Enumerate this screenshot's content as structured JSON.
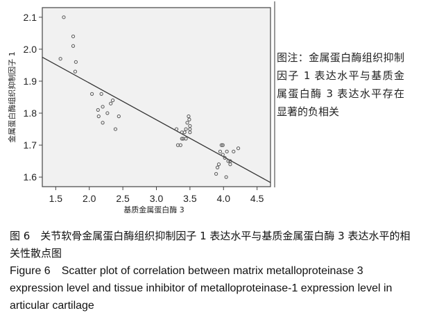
{
  "chart_data": {
    "type": "scatter",
    "title": "",
    "xlabel": "基质金属蛋白酶 3",
    "ylabel": "金属蛋白酶组织抑制因子 1",
    "xlim": [
      1.3,
      4.7
    ],
    "ylim": [
      1.57,
      2.13
    ],
    "x_ticks": [
      "1.5",
      "2.0",
      "2.5",
      "3.0",
      "3.5",
      "4.0",
      "4.5"
    ],
    "y_ticks": [
      "1.6",
      "1.7",
      "1.8",
      "1.9",
      "2.0",
      "2.1"
    ],
    "grid": false,
    "legend": "none",
    "points": [
      {
        "x": 1.62,
        "y": 2.1
      },
      {
        "x": 1.57,
        "y": 1.97
      },
      {
        "x": 1.76,
        "y": 2.04
      },
      {
        "x": 1.76,
        "y": 2.01
      },
      {
        "x": 1.8,
        "y": 1.96
      },
      {
        "x": 1.79,
        "y": 1.93
      },
      {
        "x": 2.04,
        "y": 1.86
      },
      {
        "x": 2.18,
        "y": 1.86
      },
      {
        "x": 2.13,
        "y": 1.81
      },
      {
        "x": 2.14,
        "y": 1.79
      },
      {
        "x": 2.2,
        "y": 1.82
      },
      {
        "x": 2.2,
        "y": 1.77
      },
      {
        "x": 2.27,
        "y": 1.8
      },
      {
        "x": 2.32,
        "y": 1.83
      },
      {
        "x": 2.35,
        "y": 1.84
      },
      {
        "x": 2.39,
        "y": 1.75
      },
      {
        "x": 2.44,
        "y": 1.79
      },
      {
        "x": 3.3,
        "y": 1.75
      },
      {
        "x": 3.32,
        "y": 1.7
      },
      {
        "x": 3.36,
        "y": 1.7
      },
      {
        "x": 3.38,
        "y": 1.72
      },
      {
        "x": 3.38,
        "y": 1.74
      },
      {
        "x": 3.4,
        "y": 1.72
      },
      {
        "x": 3.42,
        "y": 1.74
      },
      {
        "x": 3.44,
        "y": 1.75
      },
      {
        "x": 3.44,
        "y": 1.72
      },
      {
        "x": 3.46,
        "y": 1.77
      },
      {
        "x": 3.48,
        "y": 1.79
      },
      {
        "x": 3.49,
        "y": 1.78
      },
      {
        "x": 3.5,
        "y": 1.74
      },
      {
        "x": 3.5,
        "y": 1.75
      },
      {
        "x": 3.5,
        "y": 1.76
      },
      {
        "x": 3.89,
        "y": 1.61
      },
      {
        "x": 3.91,
        "y": 1.63
      },
      {
        "x": 3.93,
        "y": 1.64
      },
      {
        "x": 3.95,
        "y": 1.68
      },
      {
        "x": 3.97,
        "y": 1.7
      },
      {
        "x": 3.99,
        "y": 1.7
      },
      {
        "x": 3.99,
        "y": 1.67
      },
      {
        "x": 4.02,
        "y": 1.66
      },
      {
        "x": 4.04,
        "y": 1.6
      },
      {
        "x": 4.05,
        "y": 1.68
      },
      {
        "x": 4.07,
        "y": 1.65
      },
      {
        "x": 4.1,
        "y": 1.64
      },
      {
        "x": 4.1,
        "y": 1.65
      },
      {
        "x": 4.15,
        "y": 1.68
      },
      {
        "x": 4.22,
        "y": 1.69
      }
    ],
    "fit_line": {
      "x1": 1.3,
      "y1": 1.975,
      "x2": 4.7,
      "y2": 1.583
    },
    "colors": {
      "plot_bg": "#f1f1f1",
      "point_stroke": "#555555",
      "line": "#333333",
      "axis": "#444444"
    }
  },
  "side_note": "图注：金属蛋白酶组织抑制因子 1 表达水平与基质金属蛋白酶 3 表达水平存在显著的负相关",
  "caption": {
    "zh": "图 6　关节软骨金属蛋白酶组织抑制因子 1 表达水平与基质金属蛋白酶 3 表达水平的相关性散点图",
    "en": "Figure 6　Scatter plot of correlation between matrix metalloproteinase 3 expression level and tissue inhibitor of metalloproteinase-1 expression level in articular cartilage"
  }
}
